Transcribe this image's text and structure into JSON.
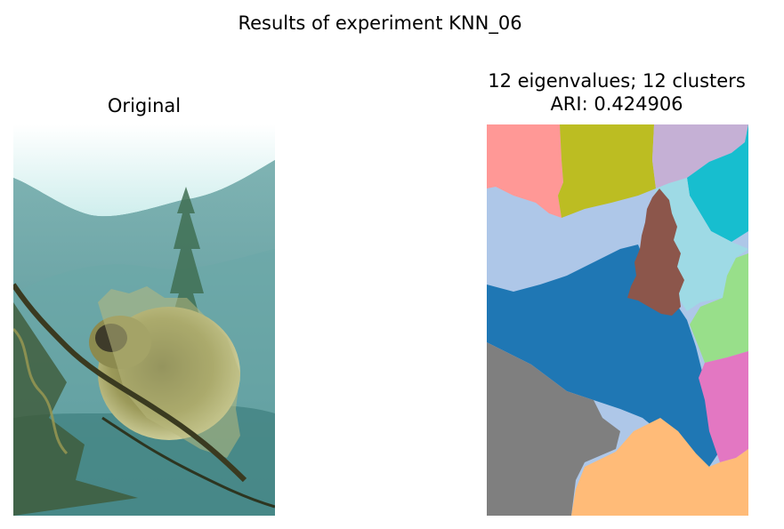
{
  "figure": {
    "suptitle": "Results of experiment KNN_06"
  },
  "panels": [
    {
      "title": "Original"
    },
    {
      "title_line1": "12 eigenvalues; 12 clusters",
      "title_line2": "ARI: 0.424906"
    }
  ],
  "segment_colors": {
    "salmon": "#ff9896",
    "olive": "#bcbd22",
    "lavender": "#c5b0d5",
    "cyan": "#17becf",
    "light_blue": "#aec7e8",
    "pale_cyan": "#9edae5",
    "brown": "#8c564b",
    "blue": "#1f77b4",
    "light_green": "#98df8a",
    "gray": "#7f7f7f",
    "pink": "#e377c2",
    "light_orange": "#ffbb78"
  }
}
